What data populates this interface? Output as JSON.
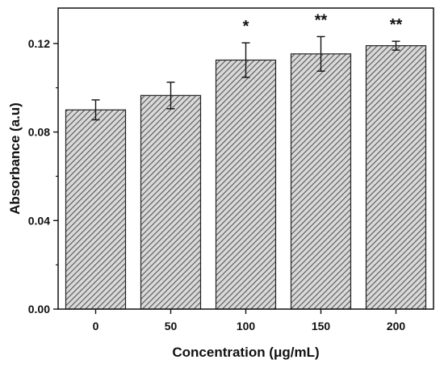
{
  "chart_data": {
    "type": "bar",
    "xlabel": "Concentration (μg/mL)",
    "ylabel": "Absorbance (a.u)",
    "categories": [
      "0",
      "50",
      "100",
      "150",
      "200"
    ],
    "values": [
      0.09,
      0.0965,
      0.1125,
      0.1153,
      0.119
    ],
    "errors": [
      0.0045,
      0.006,
      0.0078,
      0.0078,
      0.002
    ],
    "significance": [
      "",
      "",
      "*",
      "**",
      "**"
    ],
    "ylim": [
      0,
      0.136
    ],
    "yticks": [
      "0.00",
      "0.04",
      "0.08",
      "0.12"
    ],
    "ytick_values": [
      0,
      0.04,
      0.08,
      0.12
    ],
    "bar_fill": "hatched-gray",
    "colors": {
      "bar_hatch": "#555555",
      "bar_background": "#d9d9d9",
      "axis": "#111111"
    },
    "grid": false,
    "legend": "none"
  }
}
